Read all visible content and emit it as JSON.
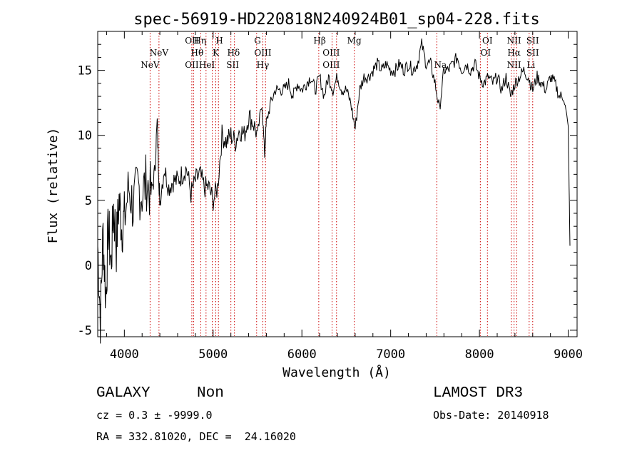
{
  "chart_data": {
    "type": "line",
    "title": "spec-56919-HD220818N240924B01_sp04-228.fits",
    "xlabel": "Wavelength (Å)",
    "ylabel": "Flux (relative)",
    "xlim": [
      3700,
      9100
    ],
    "ylim": [
      -5.5,
      18
    ],
    "xticks": [
      4000,
      5000,
      6000,
      7000,
      8000,
      9000
    ],
    "yticks": [
      -5,
      0,
      5,
      10,
      15
    ],
    "grid": false,
    "series": [
      {
        "color": "#000000",
        "x": [
          3700,
          3730,
          3760,
          3790,
          3820,
          3850,
          3880,
          3910,
          3940,
          3970,
          4000,
          4050,
          4100,
          4150,
          4200,
          4250,
          4300,
          4340,
          4370,
          4390,
          4400,
          4450,
          4500,
          4550,
          4600,
          4650,
          4700,
          4750,
          4800,
          4850,
          4900,
          4950,
          5000,
          5050,
          5100,
          5150,
          5200,
          5250,
          5300,
          5350,
          5400,
          5450,
          5500,
          5550,
          5580,
          5600,
          5650,
          5700,
          5750,
          5800,
          5850,
          5900,
          5950,
          6000,
          6050,
          6100,
          6150,
          6200,
          6250,
          6300,
          6350,
          6400,
          6450,
          6500,
          6550,
          6600,
          6650,
          6700,
          6750,
          6800,
          6850,
          6900,
          6950,
          7000,
          7050,
          7100,
          7150,
          7200,
          7250,
          7300,
          7350,
          7400,
          7450,
          7500,
          7550,
          7600,
          7650,
          7700,
          7750,
          7800,
          7850,
          7900,
          7950,
          8000,
          8050,
          8100,
          8150,
          8200,
          8250,
          8300,
          8350,
          8400,
          8450,
          8500,
          8550,
          8600,
          8650,
          8700,
          8750,
          8800,
          8850,
          8900,
          8950,
          9000,
          9020
        ],
        "y": [
          1.5,
          -4.0,
          2.5,
          -2.5,
          3.0,
          0.0,
          4.5,
          1.5,
          5.0,
          3.0,
          3.5,
          6.0,
          4.5,
          6.0,
          5.5,
          6.5,
          5.5,
          7.0,
          11.0,
          6.5,
          5.0,
          7.5,
          6.0,
          6.5,
          6.5,
          7.0,
          7.5,
          5.5,
          6.5,
          7.0,
          6.0,
          6.0,
          5.0,
          6.0,
          10.0,
          9.5,
          10.0,
          9.5,
          10.5,
          10.0,
          11.5,
          11.0,
          10.0,
          12.5,
          8.5,
          11.0,
          12.5,
          13.5,
          13.5,
          13.5,
          14.0,
          13.0,
          14.0,
          13.5,
          14.0,
          14.5,
          13.5,
          14.5,
          13.0,
          14.5,
          13.5,
          14.5,
          13.5,
          13.5,
          12.5,
          10.5,
          13.5,
          14.5,
          14.5,
          15.0,
          15.5,
          15.0,
          15.5,
          15.0,
          15.0,
          15.5,
          15.0,
          15.5,
          15.0,
          15.5,
          17.0,
          15.5,
          15.5,
          14.0,
          12.0,
          15.0,
          15.0,
          15.5,
          16.0,
          15.0,
          15.5,
          15.0,
          15.5,
          14.5,
          14.0,
          14.5,
          14.0,
          14.5,
          13.5,
          14.5,
          13.0,
          14.0,
          14.5,
          15.0,
          14.5,
          13.5,
          14.5,
          14.0,
          13.5,
          14.5,
          14.0,
          13.0,
          13.0,
          10.5,
          1.5
        ]
      }
    ],
    "lines": [
      {
        "label": "NeV",
        "x": 4290,
        "row": 3
      },
      {
        "label": "NeV",
        "x": 4390,
        "row": 2
      },
      {
        "label": "OII",
        "x": 4760,
        "row": 0
      },
      {
        "label": "OII",
        "x": 4760,
        "row": 3
      },
      {
        "label": "Hθ",
        "x": 4820,
        "row": 2
      },
      {
        "label": "Hη",
        "x": 4850,
        "row": 0
      },
      {
        "label": "HeI",
        "x": 4930,
        "row": 3
      },
      {
        "label": "K",
        "x": 5030,
        "row": 2
      },
      {
        "label": "H",
        "x": 5070,
        "row": 0
      },
      {
        "label": "Hδ",
        "x": 5230,
        "row": 2
      },
      {
        "label": "SII",
        "x": 5220,
        "row": 3
      },
      {
        "label": "G",
        "x": 5500,
        "row": 0
      },
      {
        "label": "OIII",
        "x": 5560,
        "row": 2
      },
      {
        "label": "Hγ",
        "x": 5560,
        "row": 3
      },
      {
        "label": "Hβ",
        "x": 6200,
        "row": 0
      },
      {
        "label": "OIII",
        "x": 6330,
        "row": 2
      },
      {
        "label": "OIII",
        "x": 6330,
        "row": 3
      },
      {
        "label": "Mg",
        "x": 6590,
        "row": 0
      },
      {
        "label": "Na",
        "x": 7560,
        "row": 3
      },
      {
        "label": "OI",
        "x": 8090,
        "row": 0
      },
      {
        "label": "OI",
        "x": 8070,
        "row": 2
      },
      {
        "label": "NII",
        "x": 8390,
        "row": 0
      },
      {
        "label": "NII",
        "x": 8390,
        "row": 3
      },
      {
        "label": "Hα",
        "x": 8390,
        "row": 2
      },
      {
        "label": "SII",
        "x": 8600,
        "row": 0
      },
      {
        "label": "SII",
        "x": 8600,
        "row": 2
      },
      {
        "label": "Li",
        "x": 8580,
        "row": 3
      }
    ],
    "line_markers_x": [
      4290,
      4390,
      4760,
      4780,
      4860,
      4920,
      4990,
      5030,
      5060,
      5200,
      5240,
      5490,
      5560,
      5590,
      6190,
      6340,
      6390,
      6590,
      7520,
      8010,
      8090,
      8360,
      8390,
      8420,
      8560,
      8600
    ],
    "marker_color": "#cc0000"
  },
  "info": {
    "object_class": "GALAXY",
    "subclass": "Non",
    "survey": "LAMOST DR3",
    "cz_line": "cz = 0.3 ± -9999.0",
    "obs_date": "Obs-Date: 20140918",
    "radec": "RA = 332.81020, DEC =  24.16020"
  }
}
